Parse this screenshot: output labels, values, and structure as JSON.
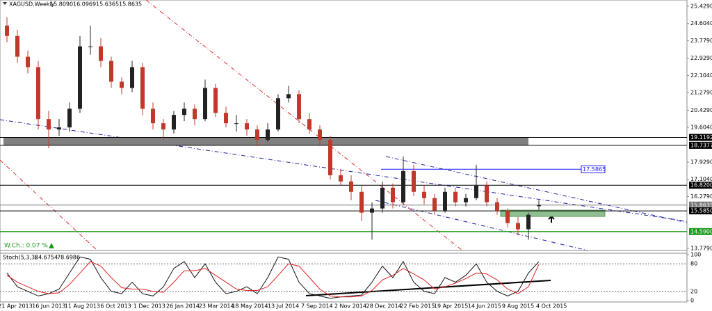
{
  "chart_data": {
    "type": "candlestick",
    "symbol": "XAGUSD,Weekly",
    "ohlc_labels": [
      "15.8090",
      "16.0969",
      "15.6365",
      "15.8635"
    ],
    "annotation": "W.Ch.: 0.07 %",
    "x_labels": [
      "21 Apr 2013",
      "16 Jun 2013",
      "11 Aug 2013",
      "6 Oct 2013",
      "1 Dec 2013",
      "26 Jan 2014",
      "23 Mar 2014",
      "18 May 2014",
      "13 Jul 2014",
      "7 Sep 2014",
      "2 Nov 2014",
      "28 Dec 2014",
      "22 Feb 2015",
      "19 Apr 2015",
      "14 Jun 2015",
      "9 Aug 2015",
      "4 Oct 2015"
    ],
    "ylim": [
      13.68,
      25.73
    ],
    "yticks": [
      {
        "value": 25.429,
        "label": "25.4290"
      },
      {
        "value": 24.604,
        "label": "24.6040"
      },
      {
        "value": 23.779,
        "label": "23.7790"
      },
      {
        "value": 22.929,
        "label": "22.9290"
      },
      {
        "value": 22.104,
        "label": "22.1040"
      },
      {
        "value": 21.279,
        "label": "21.2790"
      },
      {
        "value": 20.429,
        "label": "20.4290"
      },
      {
        "value": 19.604,
        "label": "19.6040"
      },
      {
        "value": 17.929,
        "label": "17.9290"
      },
      {
        "value": 17.104,
        "label": "17.1040"
      },
      {
        "value": 16.279,
        "label": "16.2790"
      },
      {
        "value": 13.779,
        "label": "13.7790"
      }
    ],
    "up_color": "#222222",
    "down_color": "#c0392b",
    "candles": [
      [
        24.5,
        24.9,
        23.7,
        24.0
      ],
      [
        24.0,
        24.3,
        22.7,
        23.0
      ],
      [
        23.0,
        23.3,
        22.2,
        22.5
      ],
      [
        22.5,
        22.8,
        19.5,
        20.0
      ],
      [
        20.0,
        20.4,
        18.6,
        19.5
      ],
      [
        19.5,
        20.0,
        19.2,
        19.6
      ],
      [
        19.6,
        20.8,
        19.4,
        20.5
      ],
      [
        20.5,
        24.0,
        20.3,
        23.5
      ],
      [
        23.5,
        24.5,
        23.1,
        23.5
      ],
      [
        23.5,
        23.9,
        22.5,
        22.8
      ],
      [
        22.8,
        23.0,
        21.5,
        21.8
      ],
      [
        21.8,
        22.0,
        21.2,
        21.5
      ],
      [
        21.5,
        22.8,
        21.3,
        22.5
      ],
      [
        22.5,
        22.7,
        20.2,
        20.5
      ],
      [
        20.5,
        20.8,
        19.5,
        19.8
      ],
      [
        19.8,
        20.0,
        19.0,
        19.5
      ],
      [
        19.5,
        20.4,
        19.3,
        20.2
      ],
      [
        20.2,
        20.8,
        19.9,
        20.5
      ],
      [
        20.5,
        20.7,
        19.7,
        20.0
      ],
      [
        20.0,
        21.9,
        19.9,
        21.5
      ],
      [
        21.5,
        21.7,
        20.1,
        20.3
      ],
      [
        20.3,
        20.6,
        19.6,
        19.8
      ],
      [
        19.8,
        20.2,
        19.4,
        19.8
      ],
      [
        19.8,
        20.0,
        19.2,
        19.5
      ],
      [
        19.5,
        19.7,
        18.7,
        19.0
      ],
      [
        19.0,
        19.8,
        18.9,
        19.5
      ],
      [
        19.5,
        21.2,
        19.4,
        21.0
      ],
      [
        21.0,
        21.6,
        20.8,
        21.2
      ],
      [
        21.2,
        21.4,
        19.8,
        20.0
      ],
      [
        20.0,
        20.3,
        19.3,
        19.5
      ],
      [
        19.5,
        19.7,
        18.7,
        19.0
      ],
      [
        19.0,
        19.2,
        17.1,
        17.3
      ],
      [
        17.3,
        17.6,
        16.8,
        17.0
      ],
      [
        17.0,
        17.3,
        16.1,
        16.5
      ],
      [
        16.5,
        16.8,
        15.1,
        15.5
      ],
      [
        15.5,
        16.0,
        14.2,
        15.7
      ],
      [
        15.7,
        17.0,
        15.5,
        16.7
      ],
      [
        16.7,
        16.9,
        15.7,
        16.0
      ],
      [
        16.0,
        18.2,
        15.9,
        17.5
      ],
      [
        17.5,
        17.8,
        16.3,
        16.5
      ],
      [
        16.5,
        16.8,
        15.9,
        16.2
      ],
      [
        16.2,
        16.4,
        15.4,
        15.6
      ],
      [
        15.6,
        16.7,
        15.5,
        16.5
      ],
      [
        16.5,
        16.7,
        15.8,
        16.0
      ],
      [
        16.0,
        16.4,
        15.8,
        16.2
      ],
      [
        16.2,
        17.8,
        16.1,
        16.8
      ],
      [
        16.8,
        17.0,
        15.8,
        16.0
      ],
      [
        16.0,
        16.2,
        15.4,
        15.6
      ],
      [
        15.6,
        15.7,
        14.8,
        15.0
      ],
      [
        15.0,
        15.3,
        14.4,
        14.7
      ],
      [
        14.7,
        15.5,
        14.2,
        15.4
      ],
      [
        15.809,
        16.0969,
        15.6365,
        15.8635
      ]
    ],
    "levels": [
      {
        "value": 19.1192,
        "color": "#000000"
      },
      {
        "value": 18.7377,
        "color": "#000000"
      },
      {
        "value": 17.5865,
        "color": "#1a1aff"
      },
      {
        "value": 16.82,
        "label": "16.8200",
        "color": "#000000"
      },
      {
        "value": 15.8635,
        "color": "#777777"
      },
      {
        "value": 15.585,
        "label": "15.5850",
        "color": "#000000"
      },
      {
        "value": 14.59,
        "label": "14.5900",
        "color": "#1f9a1f"
      }
    ],
    "stoch": {
      "title": "Stoch(5,3,3)",
      "ylim": [
        0,
        100
      ],
      "yticks": [
        100,
        80,
        20,
        0
      ],
      "series": [
        {
          "color": "#111111",
          "values": [
            60,
            30,
            20,
            10,
            15,
            25,
            60,
            95,
            90,
            50,
            20,
            15,
            40,
            15,
            10,
            30,
            70,
            85,
            50,
            80,
            40,
            15,
            20,
            30,
            15,
            50,
            95,
            90,
            40,
            15,
            10,
            5,
            8,
            10,
            12,
            40,
            75,
            50,
            85,
            40,
            20,
            15,
            50,
            40,
            55,
            80,
            40,
            20,
            10,
            20,
            60,
            84.6754
          ]
        },
        {
          "color": "#e02020",
          "values": [
            55,
            40,
            30,
            20,
            15,
            17,
            35,
            60,
            85,
            75,
            50,
            28,
            25,
            25,
            20,
            18,
            40,
            65,
            65,
            70,
            55,
            40,
            25,
            22,
            22,
            30,
            55,
            80,
            75,
            50,
            25,
            10,
            8,
            8,
            10,
            22,
            45,
            55,
            70,
            58,
            45,
            25,
            30,
            38,
            48,
            60,
            58,
            45,
            25,
            15,
            30,
            78.6986
          ]
        }
      ]
    }
  }
}
